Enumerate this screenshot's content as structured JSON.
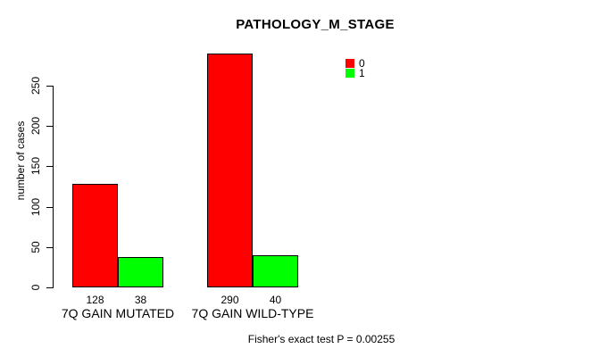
{
  "chart_data": {
    "type": "bar",
    "title": "PATHOLOGY_M_STAGE",
    "ylabel": "number of cases",
    "xlabel": "",
    "categories": [
      "7Q GAIN MUTATED",
      "7Q GAIN WILD-TYPE"
    ],
    "series": [
      {
        "name": "0",
        "color": "#ff0000",
        "values": [
          128,
          290
        ]
      },
      {
        "name": "1",
        "color": "#00ff00",
        "values": [
          38,
          40
        ]
      }
    ],
    "bar_value_labels": [
      [
        128,
        38
      ],
      [
        290,
        40
      ]
    ],
    "yticks": [
      0,
      50,
      100,
      150,
      200,
      250
    ],
    "ylim": [
      0,
      295
    ],
    "grid": false,
    "legend_position": "top-right",
    "annotation": "Fisher's exact test P = 0.00255"
  },
  "colors": {
    "series_0": "#ff0000",
    "series_1": "#00ff00",
    "axis": "#000000",
    "background": "#ffffff"
  }
}
